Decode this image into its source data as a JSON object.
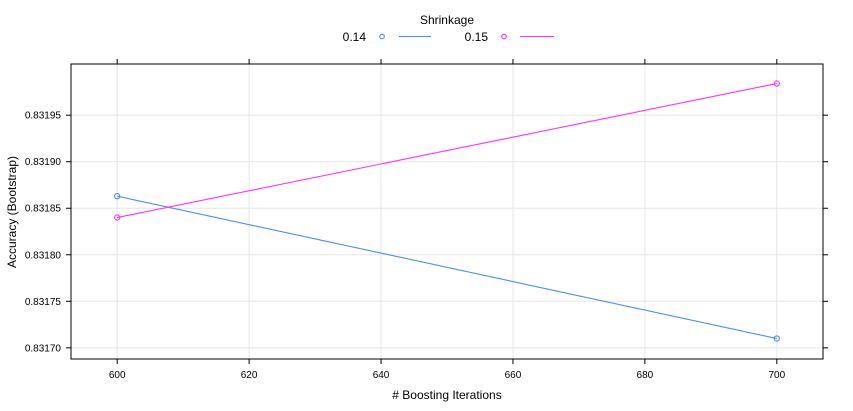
{
  "chart_data": {
    "type": "line",
    "title": "",
    "xlabel": "# Boosting Iterations",
    "ylabel": "Accuracy (Bootstrap)",
    "x": [
      600,
      700
    ],
    "xlim": [
      593,
      707
    ],
    "ylim": [
      0.831688,
      0.832005
    ],
    "xticks": [
      600,
      620,
      640,
      660,
      680,
      700
    ],
    "yticks": [
      0.8317,
      0.83175,
      0.8318,
      0.83185,
      0.8319,
      0.83195
    ],
    "ytick_labels": [
      "0.83170",
      "0.83175",
      "0.83180",
      "0.83185",
      "0.83190",
      "0.83195"
    ],
    "grid": true,
    "legend": {
      "title": "Shrinkage",
      "placement": "top-center"
    },
    "series": [
      {
        "name": "0.14",
        "color": "#4a8df8",
        "values": [
          0.831863,
          0.83171
        ]
      },
      {
        "name": "0.15",
        "color": "#ff30ff",
        "values": [
          0.83184,
          0.831984
        ]
      }
    ]
  }
}
